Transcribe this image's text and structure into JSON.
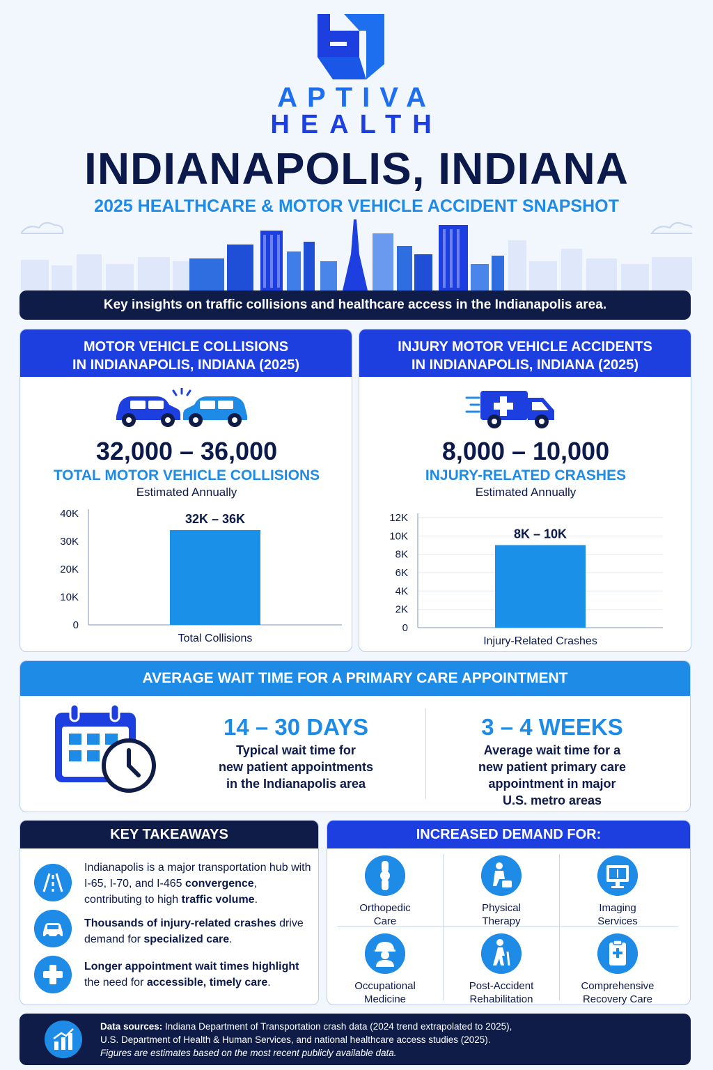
{
  "brand": {
    "line1": "APTIVA",
    "line2": "HEALTH"
  },
  "title": "INDIANAPOLIS, INDIANA",
  "subtitle": "2025 HEALTHCARE & MOTOR VEHICLE ACCIDENT SNAPSHOT",
  "banner": "Key insights on traffic collisions and healthcare access in the Indianapolis area.",
  "colors": {
    "navy": "#0f1c48",
    "royal": "#1d3fe0",
    "sky": "#1e8be6",
    "bar": "#1b90e8"
  },
  "collisions": {
    "head1": "MOTOR VEHICLE COLLISIONS",
    "head2": "IN INDIANAPOLIS, INDIANA (2025)",
    "icon": "car-crash-icon",
    "range": "32,000 – 36,000",
    "label": "TOTAL MOTOR VEHICLE COLLISIONS",
    "sub": "Estimated Annually"
  },
  "injury": {
    "head1": "INJURY MOTOR VEHICLE ACCIDENTS",
    "head2": "IN INDIANAPOLIS, INDIANA (2025)",
    "icon": "ambulance-icon",
    "range": "8,000 – 10,000",
    "label": "INJURY-RELATED CRASHES",
    "sub": "Estimated Annually"
  },
  "chart_data": [
    {
      "type": "bar",
      "categories": [
        "Total Collisions"
      ],
      "values": [
        34000
      ],
      "data_labels": [
        "32K – 36K"
      ],
      "yticks": [
        "0",
        "10K",
        "20K",
        "30K",
        "40K"
      ],
      "ylim": [
        0,
        40000
      ],
      "grid": false
    },
    {
      "type": "bar",
      "categories": [
        "Injury-Related Crashes"
      ],
      "values": [
        9000
      ],
      "data_labels": [
        "8K – 10K"
      ],
      "yticks": [
        "0",
        "2K",
        "4K",
        "6K",
        "8K",
        "10K",
        "12K"
      ],
      "ylim": [
        0,
        12000
      ],
      "grid": true
    }
  ],
  "wait": {
    "head": "AVERAGE WAIT TIME FOR A PRIMARY CARE APPOINTMENT",
    "icon": "calendar-clock-icon",
    "left_big": "14 – 30 DAYS",
    "left_l1": "Typical wait time for",
    "left_l2": "new patient appointments",
    "left_l3": "in the Indianapolis area",
    "right_big": "3 – 4 WEEKS",
    "right_l1": "Average wait time for a",
    "right_l2": "new patient primary care",
    "right_l3": "appointment in major",
    "right_l4": "U.S. metro areas"
  },
  "takeaways": {
    "head": "KEY TAKEAWAYS",
    "items": [
      {
        "icon": "road-icon",
        "a": "Indianapolis is a major transportation hub with I-65, I-70, and I-465 ",
        "b": "convergence",
        "c": ", contributing to high ",
        "d": "traffic volume",
        "e": "."
      },
      {
        "icon": "car-icon",
        "a": "Thousands of injury-related crashes",
        "b": " drive demand for ",
        "c": "specialized care",
        "d": "."
      },
      {
        "icon": "medical-cross-icon",
        "a": "Longer appointment wait times highlight",
        "b": " the need for ",
        "c": "accessible, timely care",
        "d": "."
      }
    ]
  },
  "demand": {
    "head": "INCREASED DEMAND FOR:",
    "items": [
      {
        "icon": "knee-joint-icon",
        "l1": "Orthopedic",
        "l2": "Care"
      },
      {
        "icon": "physical-therapy-icon",
        "l1": "Physical",
        "l2": "Therapy"
      },
      {
        "icon": "imaging-monitor-icon",
        "l1": "Imaging",
        "l2": "Services"
      },
      {
        "icon": "hard-hat-worker-icon",
        "l1": "Occupational",
        "l2": "Medicine"
      },
      {
        "icon": "walking-cane-icon",
        "l1": "Post-Accident",
        "l2": "Rehabilitation"
      },
      {
        "icon": "clipboard-cross-icon",
        "l1": "Comprehensive",
        "l2": "Recovery Care"
      }
    ]
  },
  "footer": {
    "icon": "bar-chart-icon",
    "label": "Data sources:",
    "l1": " Indiana Department of Transportation crash data (2024 trend extrapolated to 2025),",
    "l2": "U.S. Department of Health & Human Services, and national healthcare access studies (2025).",
    "l3": "Figures are estimates based on the most recent publicly available data."
  }
}
